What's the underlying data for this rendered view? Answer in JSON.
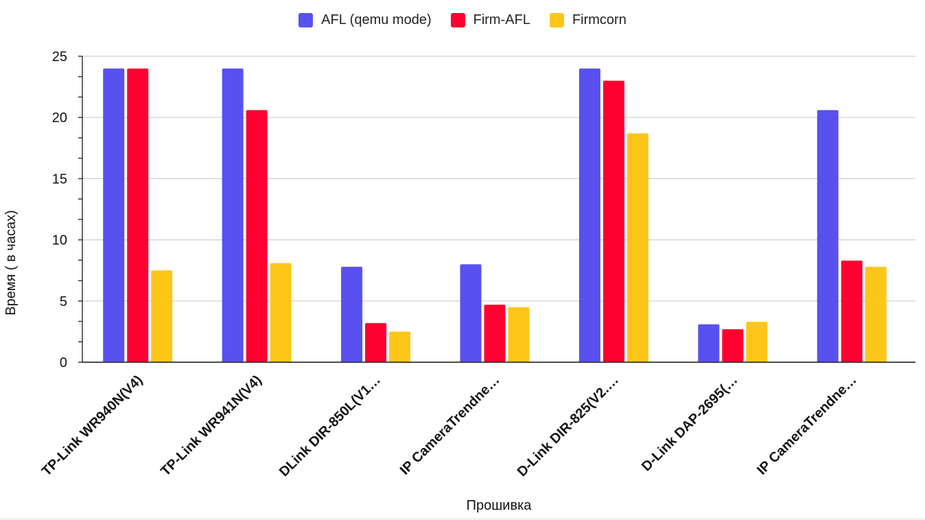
{
  "chart_data": {
    "type": "bar",
    "title": "",
    "xlabel": "Прошивка",
    "ylabel": "Время ( в часах)",
    "ylim": [
      0,
      25
    ],
    "yticks": [
      0,
      5,
      10,
      15,
      20,
      25
    ],
    "grid": true,
    "legend_position": "top-center",
    "categories": [
      "TP-Link WR940N(V4)",
      "TP-Link WR941N(V4)",
      "DLink DIR-850L(V1…",
      "IP CameraTrendne…",
      "D-Link DIR-825(V2.…",
      "D-Link DAP-2695(…",
      "IP CameraTrendne…"
    ],
    "series": [
      {
        "name": "AFL (qemu mode)",
        "color": "#5851f0",
        "values": [
          24,
          24,
          7.8,
          8.0,
          24,
          3.1,
          20.6
        ]
      },
      {
        "name": "Firm-AFL",
        "color": "#ff0030",
        "values": [
          24,
          20.6,
          3.2,
          4.7,
          23,
          2.7,
          8.3
        ]
      },
      {
        "name": "Firmcorn",
        "color": "#ffc61a",
        "values": [
          7.5,
          8.1,
          2.5,
          4.5,
          18.7,
          3.3,
          7.8
        ]
      }
    ]
  }
}
